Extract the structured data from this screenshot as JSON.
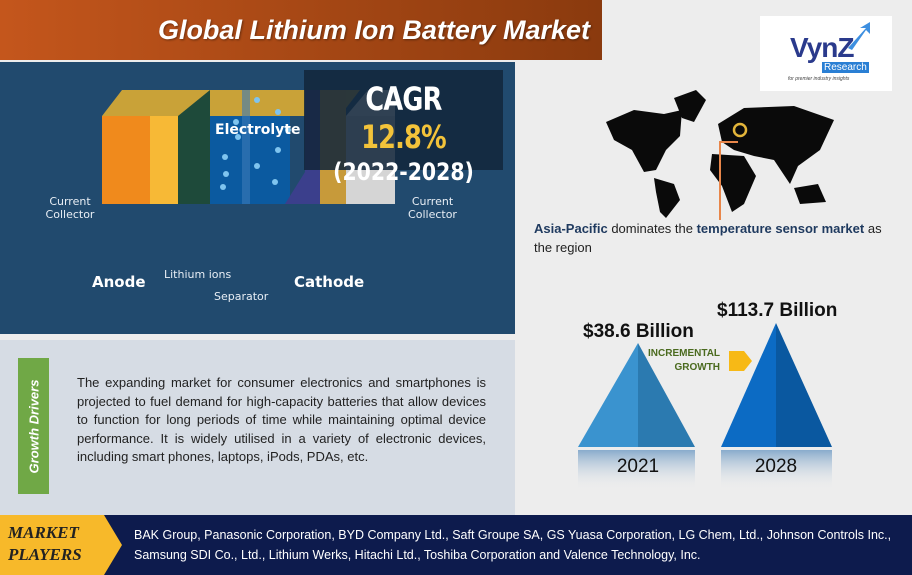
{
  "title": "Global Lithium Ion Battery Market",
  "cagr": {
    "label": "CAGR",
    "value": "12.8%",
    "period": "(2022-2028)"
  },
  "diagram": {
    "electrolyte": "Electrolyte",
    "current_collector_left": "Current Collector",
    "current_collector_right": "Current Collector",
    "anode": "Anode",
    "lithium_ions": "Lithium ions",
    "separator": "Separator",
    "cathode": "Cathode"
  },
  "logo": {
    "name": "VynZ",
    "sub": "Research",
    "tagline": "for premier industry insights"
  },
  "region": {
    "highlight": "Asia-Pacific",
    "text1": " dominates the ",
    "highlight2": "temperature sensor market",
    "text2": " as the region"
  },
  "growth_drivers": {
    "label": "Growth Drivers",
    "text": "The expanding market for consumer electronics and smartphones is projected to fuel demand for high-capacity batteries that allow devices to function for long periods of time while maintaining optimal device performance.  It is widely utilised in a variety of electronic devices, including smart phones, laptops, iPods, PDAs, etc."
  },
  "market_size": {
    "incremental_label_1": "INCREMENTAL",
    "incremental_label_2": "GROWTH",
    "items": [
      {
        "year": "2021",
        "value": "$38.6 Billion",
        "color": "#2e86c1"
      },
      {
        "year": "2028",
        "value": "$113.7 Billion",
        "color": "#0a62b8"
      }
    ]
  },
  "market_players": {
    "label_1": "MARKET",
    "label_2": "PLAYERS",
    "text": "BAK Group, Panasonic Corporation, BYD Company Ltd., Saft Groupe SA, GS Yuasa Corporation, LG Chem, Ltd., Johnson Controls Inc., Samsung SDI Co., Ltd., Lithium Werks, Hitachi Ltd., Toshiba Corporation and Valence Technology, Inc."
  }
}
